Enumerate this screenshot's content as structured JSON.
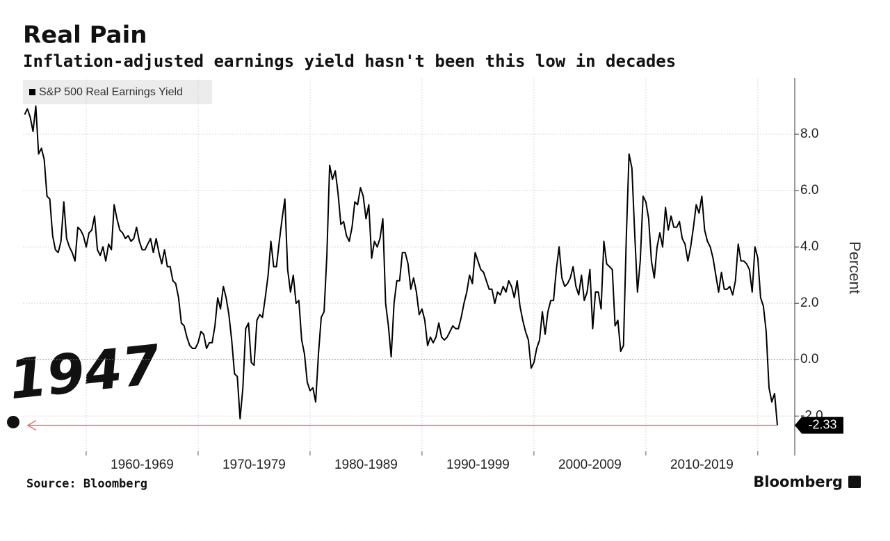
{
  "chart_data": {
    "type": "line",
    "title": "Real Pain",
    "subtitle": "Inflation-adjusted earnings yield hasn't been this low in decades",
    "y_label": "Percent",
    "source": "Source: Bloomberg",
    "brand": "Bloomberg",
    "annotation": "1947",
    "decade_labels": [
      "1960-1969",
      "1970-1979",
      "1980-1989",
      "1990-1999",
      "2000-2009",
      "2010-2019"
    ],
    "x_grid": [
      1960,
      1970,
      1980,
      1990,
      2000,
      2010,
      2020
    ],
    "xlim": [
      1954.35,
      2023.3
    ],
    "ylim": [
      -3.4,
      10
    ],
    "yticks": [
      {
        "value": -2,
        "label": "-2.0"
      },
      {
        "value": 0,
        "label": "0.0"
      },
      {
        "value": 2,
        "label": "2.0"
      },
      {
        "value": 4,
        "label": "4.0"
      },
      {
        "value": 6,
        "label": "6.0"
      },
      {
        "value": 8,
        "label": "8.0"
      }
    ],
    "grid": true,
    "legend": "top-left",
    "x": [
      1954.5,
      1954.75,
      1955,
      1955.25,
      1955.5,
      1955.75,
      1956,
      1956.25,
      1956.5,
      1956.75,
      1957,
      1957.25,
      1957.5,
      1957.75,
      1958,
      1958.25,
      1958.5,
      1958.75,
      1959,
      1959.25,
      1959.5,
      1959.75,
      1960,
      1960.25,
      1960.5,
      1960.75,
      1961,
      1961.25,
      1961.5,
      1961.75,
      1962,
      1962.25,
      1962.5,
      1962.75,
      1963,
      1963.25,
      1963.5,
      1963.75,
      1964,
      1964.25,
      1964.5,
      1964.75,
      1965,
      1965.25,
      1965.5,
      1965.75,
      1966,
      1966.25,
      1966.5,
      1966.75,
      1967,
      1967.25,
      1967.5,
      1967.75,
      1968,
      1968.25,
      1968.5,
      1968.75,
      1969,
      1969.25,
      1969.5,
      1969.75,
      1970,
      1970.25,
      1970.5,
      1970.75,
      1971,
      1971.25,
      1971.5,
      1971.75,
      1972,
      1972.25,
      1972.5,
      1972.75,
      1973,
      1973.25,
      1973.5,
      1973.75,
      1974,
      1974.25,
      1974.5,
      1974.75,
      1975,
      1975.25,
      1975.5,
      1975.75,
      1976,
      1976.25,
      1976.5,
      1976.75,
      1977,
      1977.25,
      1977.5,
      1977.75,
      1978,
      1978.25,
      1978.5,
      1978.75,
      1979,
      1979.25,
      1979.5,
      1979.75,
      1980,
      1980.25,
      1980.5,
      1980.75,
      1981,
      1981.25,
      1981.5,
      1981.75,
      1982,
      1982.25,
      1982.5,
      1982.75,
      1983,
      1983.25,
      1983.5,
      1983.75,
      1984,
      1984.25,
      1984.5,
      1984.75,
      1985,
      1985.25,
      1985.5,
      1985.75,
      1986,
      1986.25,
      1986.5,
      1986.75,
      1987,
      1987.25,
      1987.5,
      1987.75,
      1988,
      1988.25,
      1988.5,
      1988.75,
      1989,
      1989.25,
      1989.5,
      1989.75,
      1990,
      1990.25,
      1990.5,
      1990.75,
      1991,
      1991.25,
      1991.5,
      1991.75,
      1992,
      1992.25,
      1992.5,
      1992.75,
      1993,
      1993.25,
      1993.5,
      1993.75,
      1994,
      1994.25,
      1994.5,
      1994.75,
      1995,
      1995.25,
      1995.5,
      1995.75,
      1996,
      1996.25,
      1996.5,
      1996.75,
      1997,
      1997.25,
      1997.5,
      1997.75,
      1998,
      1998.25,
      1998.5,
      1998.75,
      1999,
      1999.25,
      1999.5,
      1999.75,
      2000,
      2000.25,
      2000.5,
      2000.75,
      2001,
      2001.25,
      2001.5,
      2001.75,
      2002,
      2002.25,
      2002.5,
      2002.75,
      2003,
      2003.25,
      2003.5,
      2003.75,
      2004,
      2004.25,
      2004.5,
      2004.75,
      2005,
      2005.25,
      2005.5,
      2005.75,
      2006,
      2006.25,
      2006.5,
      2006.75,
      2007,
      2007.25,
      2007.5,
      2007.75,
      2008,
      2008.25,
      2008.5,
      2008.75,
      2009,
      2009.25,
      2009.5,
      2009.75,
      2010,
      2010.25,
      2010.5,
      2010.75,
      2011,
      2011.25,
      2011.5,
      2011.75,
      2012,
      2012.25,
      2012.5,
      2012.75,
      2013,
      2013.25,
      2013.5,
      2013.75,
      2014,
      2014.25,
      2014.5,
      2014.75,
      2015,
      2015.25,
      2015.5,
      2015.75,
      2016,
      2016.25,
      2016.5,
      2016.75,
      2017,
      2017.25,
      2017.5,
      2017.75,
      2018,
      2018.25,
      2018.5,
      2018.75,
      2019,
      2019.25,
      2019.5,
      2019.75,
      2020,
      2020.25,
      2020.5,
      2020.75,
      2021,
      2021.25,
      2021.5,
      2021.75
    ],
    "series": [
      {
        "name": "S&P 500 Real Earnings Yield",
        "color": "#000000",
        "values": [
          8.7,
          8.9,
          8.6,
          8.1,
          9.0,
          7.3,
          7.5,
          7.1,
          5.8,
          5.7,
          4.4,
          3.9,
          3.8,
          4.2,
          5.6,
          4.3,
          4.0,
          3.8,
          3.5,
          4.7,
          4.6,
          4.4,
          4.0,
          4.5,
          4.6,
          5.1,
          3.9,
          3.7,
          4.0,
          3.5,
          4.1,
          3.9,
          5.5,
          5.0,
          4.6,
          4.5,
          4.3,
          4.4,
          4.2,
          4.3,
          4.7,
          4.2,
          3.9,
          3.9,
          4.1,
          4.3,
          3.8,
          4.3,
          3.8,
          3.4,
          3.9,
          3.3,
          3.3,
          2.8,
          2.7,
          2.2,
          1.3,
          1.2,
          0.8,
          0.5,
          0.4,
          0.4,
          0.6,
          1.0,
          0.9,
          0.4,
          0.6,
          0.6,
          1.2,
          2.2,
          1.8,
          2.6,
          2.2,
          1.6,
          0.7,
          -0.5,
          -0.6,
          -2.1,
          -1.0,
          1.1,
          1.3,
          -0.1,
          -0.2,
          1.4,
          1.6,
          1.5,
          2.2,
          3.0,
          4.2,
          3.3,
          3.3,
          4.2,
          5.0,
          5.7,
          3.2,
          2.4,
          3.0,
          2.0,
          2.1,
          0.7,
          0.2,
          -0.8,
          -1.1,
          -1.0,
          -1.5,
          0.2,
          1.5,
          1.7,
          3.7,
          6.9,
          6.4,
          6.7,
          5.9,
          4.8,
          4.9,
          4.4,
          4.2,
          4.7,
          5.6,
          5.5,
          6.1,
          5.8,
          5.0,
          5.5,
          3.6,
          4.2,
          4.0,
          4.3,
          5.0,
          2.0,
          1.2,
          0.1,
          2.0,
          2.8,
          2.8,
          3.8,
          3.8,
          3.4,
          2.5,
          2.9,
          2.4,
          1.6,
          1.8,
          1.4,
          0.5,
          0.8,
          0.6,
          0.8,
          1.3,
          0.8,
          0.7,
          0.8,
          1.0,
          1.2,
          1.1,
          1.1,
          1.5,
          2.0,
          2.4,
          3.0,
          2.7,
          3.8,
          3.5,
          3.2,
          3.1,
          2.8,
          2.5,
          2.5,
          2.0,
          2.4,
          2.3,
          2.6,
          2.4,
          2.8,
          2.6,
          2.2,
          2.8,
          1.9,
          1.4,
          1.0,
          0.7,
          -0.3,
          -0.1,
          0.4,
          0.7,
          1.7,
          0.9,
          1.7,
          2.1,
          2.1,
          3.2,
          4.0,
          2.9,
          2.6,
          2.7,
          2.9,
          3.3,
          2.6,
          2.3,
          3.0,
          2.1,
          2.4,
          3.2,
          1.1,
          2.4,
          2.4,
          1.8,
          4.2,
          3.4,
          3.3,
          3.2,
          1.2,
          1.4,
          0.3,
          0.5,
          4.3,
          7.3,
          6.8,
          4.5,
          2.4,
          3.5,
          5.8,
          5.6,
          5.0,
          3.5,
          2.9,
          4.0,
          4.5,
          4.0,
          5.4,
          4.6,
          5.1,
          4.7,
          4.7,
          4.9,
          4.3,
          4.1,
          3.5,
          4.0,
          4.7,
          5.5,
          5.2,
          5.8,
          4.6,
          4.2,
          4.0,
          3.6,
          3.0,
          2.4,
          3.1,
          2.5,
          2.5,
          2.6,
          2.3,
          2.8,
          4.1,
          3.5,
          3.5,
          3.4,
          3.2,
          2.4,
          4.0,
          3.6,
          2.2,
          1.9,
          1.0,
          -1.0,
          -1.5,
          -1.2,
          -2.33
        ]
      }
    ]
  }
}
